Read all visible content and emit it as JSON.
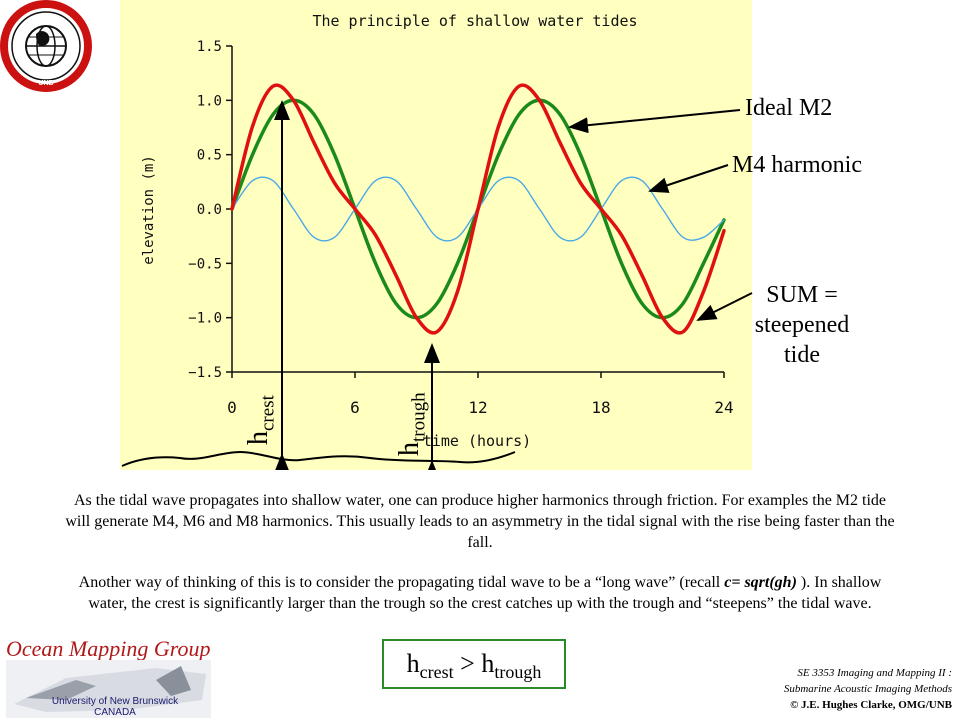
{
  "chart_data": {
    "type": "line",
    "title": "The principle of shallow water tides",
    "xlabel": "time (hours)",
    "ylabel": "elevation (m)",
    "xlim": [
      0,
      24
    ],
    "ylim": [
      -1.5,
      1.5
    ],
    "x_ticks": [
      0,
      6,
      12,
      18,
      24
    ],
    "y_ticks": [
      -1.5,
      -1.0,
      -0.5,
      0.0,
      0.5,
      1.0,
      1.5
    ],
    "x_tick_labels": [
      "0",
      "6",
      "12",
      "18",
      "24"
    ],
    "y_tick_labels": [
      "−1.5",
      "−1.0",
      "−0.5",
      "0.0",
      "0.5",
      "1.0",
      "1.5"
    ],
    "grid": false,
    "x": [
      0,
      1,
      2,
      3,
      4,
      5,
      6,
      7,
      8,
      9,
      10,
      11,
      12,
      13,
      14,
      15,
      16,
      17,
      18,
      19,
      20,
      21,
      22,
      23,
      24
    ],
    "series": [
      {
        "name": "Ideal M2",
        "color": "#1a8a1a",
        "values": [
          0.0,
          0.5,
          0.87,
          1.0,
          0.87,
          0.5,
          0.0,
          -0.5,
          -0.87,
          -1.0,
          -0.87,
          -0.5,
          0.0,
          0.5,
          0.87,
          1.0,
          0.87,
          0.5,
          0.0,
          -0.5,
          -0.87,
          -1.0,
          -0.87,
          -0.5,
          -0.1
        ]
      },
      {
        "name": "M4 harmonic",
        "color": "#4aa8e8",
        "values": [
          0.0,
          0.26,
          0.26,
          0.0,
          -0.26,
          -0.26,
          0.0,
          0.26,
          0.26,
          0.0,
          -0.26,
          -0.26,
          0.0,
          0.26,
          0.26,
          0.0,
          -0.26,
          -0.26,
          0.0,
          0.26,
          0.26,
          0.0,
          -0.26,
          -0.26,
          -0.1
        ]
      },
      {
        "name": "SUM",
        "color": "#e01010",
        "values": [
          0.0,
          0.76,
          1.13,
          1.0,
          0.61,
          0.24,
          0.0,
          -0.24,
          -0.61,
          -1.0,
          -1.13,
          -0.76,
          0.0,
          0.76,
          1.13,
          1.0,
          0.61,
          0.24,
          0.0,
          -0.24,
          -0.61,
          -1.0,
          -1.13,
          -0.76,
          -0.2
        ]
      }
    ]
  },
  "annotations": {
    "ideal_m2": "Ideal M2",
    "m4_harmonic": "M4 harmonic",
    "sum_line1": "SUM =",
    "sum_line2": "steepened",
    "sum_line3": "tide",
    "h_crest_h": "h",
    "h_crest_sub": "crest",
    "h_trough_h": "h",
    "h_trough_sub": "trough"
  },
  "text": {
    "para1": "As the tidal wave propagates into shallow water, one can produce higher harmonics through friction. For examples the M2 tide will  generate M4,  M6 and M8 harmonics. This usually leads to an asymmetry in the tidal signal with the rise being faster than the fall.",
    "para2_before": "Another way of thinking of this is to consider the propagating tidal wave to be a “long wave” (recall ",
    "para2_formula": "c= sqrt(gh)",
    "para2_after": " ). In shallow water, the crest is significantly larger than the trough so the crest catches up  with the trough and “steepens” the tidal wave.",
    "formula_h1": "h",
    "formula_sub1": "crest",
    "formula_gt": " > ",
    "formula_h2": "h",
    "formula_sub2": "trough"
  },
  "branding": {
    "badge_text": "GEODESY AND GEOMATICS ENGINEERING",
    "badge_bottom": "UNB",
    "omg_title": "Ocean Mapping Group",
    "unb_line1": "University of New Brunswick",
    "unb_line2": "CANADA",
    "course_line1": "SE 3353 Imaging and Mapping II :",
    "course_line2": "Submarine Acoustic Imaging Methods",
    "copyright": "© J.E. Hughes Clarke, OMG/UNB"
  },
  "colors": {
    "panel_bg": "#ffffc0",
    "m2": "#1a8a1a",
    "m4": "#4aa8e8",
    "sum": "#e01010",
    "omg_red": "#b01a1a",
    "formula_border": "#2a8a2a"
  }
}
